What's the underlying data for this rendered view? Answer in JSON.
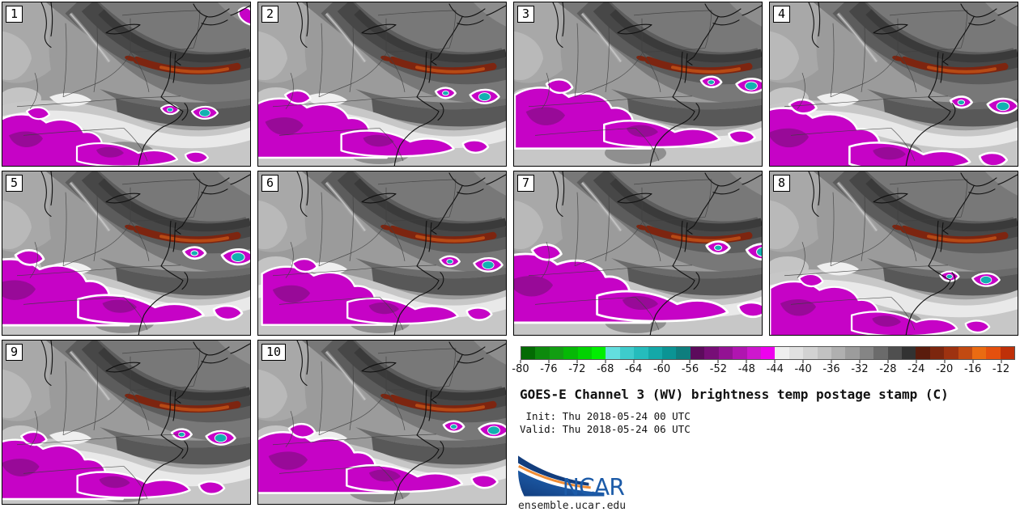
{
  "panels": [
    {
      "label": "1"
    },
    {
      "label": "2"
    },
    {
      "label": "3"
    },
    {
      "label": "4"
    },
    {
      "label": "5"
    },
    {
      "label": "6"
    },
    {
      "label": "7"
    },
    {
      "label": "8"
    },
    {
      "label": "9"
    },
    {
      "label": "10"
    }
  ],
  "legend": {
    "title": "GOES-E Channel 3 (WV) brightness temp postage stamp (C)",
    "init_line": " Init: Thu 2018-05-24 00 UTC",
    "valid_line": "Valid: Thu 2018-05-24 06 UTC",
    "logo_text": "NCAR",
    "footer_url": "ensemble.ucar.edu"
  },
  "colorbar": {
    "range_min": -80,
    "range_max": -10,
    "segment_step": 2,
    "ticks": [
      -80,
      -76,
      -72,
      -68,
      -64,
      -60,
      -56,
      -52,
      -48,
      -44,
      -40,
      -36,
      -32,
      -28,
      -24,
      -20,
      -16,
      -12
    ],
    "segment_colors": [
      "#036b03",
      "#0d8a0d",
      "#129e12",
      "#06b806",
      "#02d202",
      "#00ee00",
      "#63dede",
      "#3ecccc",
      "#25bcbc",
      "#14a8a8",
      "#0b9494",
      "#0e7e7e",
      "#5c0b5c",
      "#770e77",
      "#931293",
      "#b015b0",
      "#cd18cd",
      "#ee00ee",
      "#efefef",
      "#e1e1e1",
      "#d2d2d2",
      "#c2c2c2",
      "#b0b0b0",
      "#9c9c9c",
      "#858585",
      "#6b6b6b",
      "#4f4f4f",
      "#323232",
      "#5a1c0d",
      "#7c260e",
      "#9e3210",
      "#c24a12",
      "#ea6b12",
      "#e4500e",
      "#bf3008"
    ]
  },
  "colors": {
    "logo_blue": "#1c5ba8",
    "logo_navy": "#123d7d",
    "logo_orange": "#f08c34",
    "storm_magenta": "#c603c6",
    "storm_core_purple": "#980a98",
    "storm_cyan": "#12b1b1",
    "dry_streak_red": "#7d2510"
  },
  "chart_data": {
    "type": "heatmap",
    "title": "GOES-E Channel 3 (WV) brightness temp postage stamp (C)",
    "init": "Thu 2018-05-24 00 UTC",
    "valid": "Thu 2018-05-24 06 UTC",
    "panel_members": [
      "1",
      "2",
      "3",
      "4",
      "5",
      "6",
      "7",
      "8",
      "9",
      "10"
    ],
    "colorbar_units": "C",
    "colorbar_range": [
      -80,
      -10
    ],
    "colorbar_tick_values": [
      -80,
      -76,
      -72,
      -68,
      -64,
      -60,
      -56,
      -52,
      -48,
      -44,
      -40,
      -36,
      -32,
      -28,
      -24,
      -20,
      -16,
      -12
    ],
    "colorbar_segment_step_c": 2,
    "legend_position": "bottom-right",
    "notes_visible_features": "10 ensemble-member water-vapor brightness temperature maps; magenta/cyan = coldest cloud tops, grays = mid values, orange/red streak = warm dry slot"
  }
}
